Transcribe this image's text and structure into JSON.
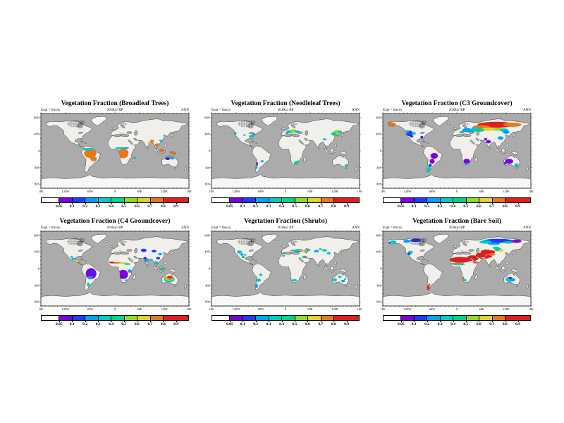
{
  "figure": {
    "kind": "six-panel global vegetation fraction maps",
    "background": "#ffffff"
  },
  "shared": {
    "expt_label": "Expt = lmxxy",
    "time_label": "20.0kyr BP",
    "season_label": "ANN"
  },
  "axes": {
    "x_ticks": [
      "180",
      "120W",
      "60W",
      "0",
      "60E",
      "120E",
      "180"
    ],
    "y_ticks": [
      "80N",
      "40N",
      "0",
      "40S",
      "80S"
    ]
  },
  "colorbar": {
    "tick_labels": [
      "0.05",
      "0.1",
      "0.2",
      "0.3",
      "0.4",
      "0.5",
      "0.6",
      "0.7",
      "0.8",
      "0.9"
    ],
    "segments": [
      {
        "color": "#ffffff",
        "flex": 1.4
      },
      {
        "color": "#7d00dc",
        "flex": 1
      },
      {
        "color": "#1e3cfa",
        "flex": 1
      },
      {
        "color": "#00a0ff",
        "flex": 1
      },
      {
        "color": "#00c8c8",
        "flex": 1
      },
      {
        "color": "#00d28c",
        "flex": 1
      },
      {
        "color": "#8cdc28",
        "flex": 1
      },
      {
        "color": "#e0d030",
        "flex": 1
      },
      {
        "color": "#e67819",
        "flex": 1
      },
      {
        "color": "#e11e1e",
        "flex": 2
      }
    ],
    "boundary_percents": [
      12.3,
      21.05,
      29.8,
      38.6,
      47.4,
      56.1,
      64.9,
      73.7,
      82.5,
      91.2
    ]
  },
  "map": {
    "ocean": "#acacac",
    "land": "#f0efeb",
    "ice": "#f7f7f5",
    "coast": "#000000",
    "palette": {
      "V": "#7d00dc",
      "B": "#1e3cfa",
      "A": "#00a0ff",
      "C": "#00c8c8",
      "T": "#00d28c",
      "G": "#8cdc28",
      "Y": "#e0d030",
      "O": "#e67819",
      "R": "#e11e1e"
    }
  },
  "panels": [
    {
      "title": "Vegetation Fraction (Broadleaf Trees)",
      "blobs": [
        [
          -60,
          -6,
          15,
          11,
          "O"
        ],
        [
          -52,
          -19,
          8,
          6,
          "O"
        ],
        [
          -63,
          4,
          12,
          3,
          "C"
        ],
        [
          -74,
          4,
          4,
          3,
          "T"
        ],
        [
          -88,
          13,
          5,
          3,
          "C"
        ],
        [
          -82,
          28,
          3,
          2,
          "C"
        ],
        [
          20,
          -6,
          13,
          12,
          "O"
        ],
        [
          12,
          7,
          12,
          2,
          "C"
        ],
        [
          27,
          7,
          7,
          2,
          "A"
        ],
        [
          47,
          -17,
          2,
          4,
          "C"
        ],
        [
          90,
          24,
          5,
          3,
          "O"
        ],
        [
          83,
          20,
          4,
          2,
          "Y"
        ],
        [
          103,
          14,
          6,
          4,
          "O"
        ],
        [
          111,
          2,
          10,
          7,
          "O"
        ],
        [
          140,
          -5,
          8,
          4,
          "O"
        ],
        [
          117,
          22,
          7,
          3,
          "A"
        ],
        [
          122,
          28,
          5,
          3,
          "B"
        ],
        [
          114,
          25,
          7,
          2,
          "C"
        ],
        [
          132,
          -15,
          11,
          4,
          "C"
        ],
        [
          128,
          -19,
          6,
          3,
          "V"
        ],
        [
          140,
          -18,
          4,
          3,
          "A"
        ],
        [
          134,
          -12,
          5,
          2,
          "O"
        ]
      ]
    },
    {
      "title": "Vegetation Fraction (Needleleaf Trees)",
      "blobs": [
        [
          -80,
          36,
          7,
          4,
          "C"
        ],
        [
          -85,
          34,
          4,
          3,
          "T"
        ],
        [
          -77,
          40,
          4,
          3,
          "A"
        ],
        [
          -122,
          42,
          3,
          4,
          "C"
        ],
        [
          -100,
          38,
          3,
          2,
          "C"
        ],
        [
          10,
          46,
          8,
          4,
          "T"
        ],
        [
          20,
          48,
          8,
          4,
          "G"
        ],
        [
          28,
          46,
          6,
          3,
          "C"
        ],
        [
          3,
          43,
          4,
          2,
          "A"
        ],
        [
          125,
          44,
          9,
          6,
          "G"
        ],
        [
          117,
          41,
          6,
          4,
          "T"
        ],
        [
          132,
          46,
          5,
          3,
          "C"
        ],
        [
          128,
          36,
          4,
          3,
          "A"
        ],
        [
          -71,
          -37,
          3,
          7,
          "A"
        ],
        [
          -69,
          -31,
          2,
          4,
          "V"
        ],
        [
          -57,
          -25,
          4,
          3,
          "C"
        ],
        [
          26,
          -29,
          6,
          4,
          "T"
        ],
        [
          30,
          -26,
          4,
          3,
          "C"
        ],
        [
          148,
          -35,
          4,
          3,
          "C"
        ],
        [
          146,
          -41,
          2,
          2,
          "T"
        ],
        [
          95,
          28,
          5,
          2,
          "A"
        ]
      ]
    },
    {
      "title": "Vegetation Fraction (C3 Groundcover)",
      "blobs": [
        [
          95,
          63,
          45,
          7,
          "R"
        ],
        [
          60,
          57,
          22,
          5,
          "O"
        ],
        [
          135,
          63,
          22,
          5,
          "O"
        ],
        [
          -160,
          64,
          12,
          5,
          "O"
        ],
        [
          -168,
          60,
          6,
          3,
          "R"
        ],
        [
          75,
          52,
          18,
          4,
          "Y"
        ],
        [
          55,
          50,
          12,
          4,
          "T"
        ],
        [
          45,
          53,
          10,
          4,
          "C"
        ],
        [
          100,
          52,
          12,
          4,
          "G"
        ],
        [
          115,
          50,
          10,
          4,
          "C"
        ],
        [
          120,
          45,
          8,
          4,
          "A"
        ],
        [
          25,
          50,
          12,
          5,
          "A"
        ],
        [
          38,
          48,
          8,
          4,
          "C"
        ],
        [
          12,
          45,
          6,
          3,
          "T"
        ],
        [
          -115,
          42,
          8,
          7,
          "B"
        ],
        [
          -105,
          42,
          5,
          4,
          "C"
        ],
        [
          -120,
          47,
          4,
          3,
          "T"
        ],
        [
          -110,
          35,
          4,
          3,
          "V"
        ],
        [
          -85,
          33,
          4,
          3,
          "B"
        ],
        [
          -55,
          -12,
          9,
          7,
          "V"
        ],
        [
          -60,
          -25,
          6,
          6,
          "V"
        ],
        [
          -68,
          -44,
          4,
          8,
          "C"
        ],
        [
          -70,
          -51,
          3,
          4,
          "T"
        ],
        [
          -65,
          -35,
          4,
          4,
          "B"
        ],
        [
          24,
          -25,
          8,
          6,
          "V"
        ],
        [
          20,
          -32,
          4,
          2,
          "C"
        ],
        [
          127,
          -25,
          10,
          6,
          "V"
        ],
        [
          145,
          -34,
          5,
          4,
          "C"
        ],
        [
          117,
          -30,
          4,
          3,
          "B"
        ],
        [
          77,
          22,
          6,
          4,
          "V"
        ],
        [
          70,
          28,
          4,
          3,
          "B"
        ],
        [
          106,
          31,
          7,
          4,
          "A"
        ]
      ]
    },
    {
      "title": "Vegetation Fraction (C4 Groundcover)",
      "blobs": [
        [
          -58,
          -12,
          13,
          13,
          "V"
        ],
        [
          -60,
          -22,
          6,
          4,
          "A"
        ],
        [
          -55,
          -8,
          5,
          3,
          "B"
        ],
        [
          -65,
          -38,
          3,
          5,
          "C"
        ],
        [
          20,
          -14,
          12,
          11,
          "V"
        ],
        [
          2,
          14,
          16,
          2,
          "O"
        ],
        [
          20,
          13,
          12,
          2,
          "Y"
        ],
        [
          30,
          11,
          8,
          2,
          "T"
        ],
        [
          -8,
          15,
          6,
          2,
          "R"
        ],
        [
          36,
          -6,
          5,
          4,
          "A"
        ],
        [
          77,
          20,
          6,
          5,
          "A"
        ],
        [
          80,
          14,
          4,
          3,
          "Y"
        ],
        [
          73,
          25,
          4,
          3,
          "V"
        ],
        [
          86,
          22,
          4,
          2,
          "C"
        ],
        [
          100,
          14,
          5,
          4,
          "C"
        ],
        [
          115,
          0,
          8,
          3,
          "T"
        ],
        [
          105,
          25,
          5,
          3,
          "B"
        ],
        [
          132,
          -25,
          13,
          8,
          "C"
        ],
        [
          132,
          -23,
          10,
          6,
          "Y"
        ],
        [
          133,
          -22,
          8,
          5,
          "O"
        ],
        [
          134,
          -20,
          5,
          3,
          "R"
        ],
        [
          -100,
          23,
          6,
          3,
          "C"
        ],
        [
          -95,
          19,
          4,
          2,
          "Y"
        ],
        [
          -89,
          15,
          3,
          2,
          "O"
        ],
        [
          -105,
          28,
          4,
          2,
          "A"
        ],
        [
          70,
          44,
          7,
          4,
          "B"
        ],
        [
          95,
          42,
          6,
          3,
          "B"
        ],
        [
          110,
          35,
          5,
          3,
          "A"
        ],
        [
          28,
          -28,
          5,
          2,
          "C"
        ]
      ]
    },
    {
      "title": "Vegetation Fraction (Shrubs)",
      "blobs": [
        [
          -112,
          40,
          6,
          4,
          "C"
        ],
        [
          -106,
          34,
          4,
          3,
          "A"
        ],
        [
          -103,
          28,
          4,
          3,
          "T"
        ],
        [
          -98,
          33,
          3,
          2,
          "C"
        ],
        [
          30,
          43,
          9,
          4,
          "C"
        ],
        [
          45,
          42,
          6,
          3,
          "Y"
        ],
        [
          18,
          44,
          4,
          2,
          "T"
        ],
        [
          55,
          45,
          6,
          3,
          "C"
        ],
        [
          75,
          42,
          6,
          3,
          "A"
        ],
        [
          95,
          44,
          6,
          3,
          "C"
        ],
        [
          105,
          37,
          5,
          3,
          "C"
        ],
        [
          85,
          47,
          4,
          2,
          "T"
        ],
        [
          45,
          28,
          5,
          3,
          "C"
        ],
        [
          -4,
          38,
          3,
          2,
          "T"
        ],
        [
          -5,
          31,
          4,
          2,
          "C"
        ],
        [
          -65,
          -28,
          5,
          4,
          "C"
        ],
        [
          -70,
          -42,
          3,
          5,
          "A"
        ],
        [
          -60,
          -15,
          4,
          3,
          "C"
        ],
        [
          22,
          -28,
          6,
          3,
          "C"
        ],
        [
          120,
          -27,
          5,
          4,
          "C"
        ],
        [
          140,
          -30,
          5,
          3,
          "A"
        ],
        [
          132,
          -20,
          4,
          3,
          "T"
        ],
        [
          145,
          -25,
          3,
          2,
          "C"
        ]
      ]
    },
    {
      "title": "Vegetation Fraction (Bare Soil)",
      "blobs": [
        [
          8,
          21,
          26,
          7,
          "R"
        ],
        [
          38,
          25,
          14,
          7,
          "R"
        ],
        [
          58,
          32,
          12,
          6,
          "R"
        ],
        [
          72,
          40,
          14,
          6,
          "R"
        ],
        [
          85,
          40,
          8,
          4,
          "R"
        ],
        [
          78,
          30,
          8,
          4,
          "R"
        ],
        [
          0,
          12,
          18,
          2,
          "O"
        ],
        [
          5,
          10,
          15,
          2,
          "C"
        ],
        [
          45,
          15,
          6,
          3,
          "O"
        ],
        [
          100,
          67,
          35,
          5,
          "B"
        ],
        [
          70,
          64,
          15,
          4,
          "C"
        ],
        [
          125,
          63,
          12,
          3,
          "T"
        ],
        [
          145,
          66,
          12,
          4,
          "V"
        ],
        [
          90,
          60,
          15,
          3,
          "A"
        ],
        [
          -100,
          68,
          13,
          4,
          "B"
        ],
        [
          -122,
          66,
          8,
          4,
          "A"
        ],
        [
          -155,
          64,
          8,
          4,
          "C"
        ],
        [
          -165,
          61,
          5,
          3,
          "B"
        ],
        [
          85,
          34,
          9,
          3,
          "O"
        ],
        [
          72,
          27,
          5,
          3,
          "R"
        ],
        [
          -69,
          -45,
          3,
          7,
          "R"
        ],
        [
          -67,
          -39,
          3,
          3,
          "O"
        ],
        [
          127,
          -26,
          9,
          6,
          "C"
        ],
        [
          136,
          -27,
          6,
          4,
          "A"
        ],
        [
          130,
          -23,
          4,
          3,
          "B"
        ],
        [
          19,
          -28,
          5,
          3,
          "C"
        ],
        [
          15,
          -23,
          3,
          4,
          "O"
        ],
        [
          -113,
          39,
          6,
          4,
          "C"
        ],
        [
          -117,
          35,
          4,
          3,
          "B"
        ],
        [
          100,
          46,
          9,
          4,
          "T"
        ],
        [
          95,
          50,
          8,
          3,
          "C"
        ],
        [
          108,
          44,
          6,
          3,
          "Y"
        ]
      ]
    }
  ],
  "chart_data": {
    "type": "heatmap",
    "subtype": "geographic vegetation-fraction maps, equirectangular world projection",
    "panels": [
      "Vegetation Fraction (Broadleaf Trees)",
      "Vegetation Fraction (Needleleaf Trees)",
      "Vegetation Fraction (C3 Groundcover)",
      "Vegetation Fraction (C4 Groundcover)",
      "Vegetation Fraction (Shrubs)",
      "Vegetation Fraction (Bare Soil)"
    ],
    "time": "20.0kyr BP",
    "season": "ANN",
    "value_levels": [
      0.05,
      0.1,
      0.2,
      0.3,
      0.4,
      0.5,
      0.6,
      0.7,
      0.8,
      0.9
    ],
    "level_colors": [
      "#ffffff",
      "#7d00dc",
      "#1e3cfa",
      "#00a0ff",
      "#00c8c8",
      "#00d28c",
      "#8cdc28",
      "#e0d030",
      "#e67819",
      "#e11e1e"
    ],
    "x_range_deg": [
      -180,
      180
    ],
    "y_range_deg": [
      -90,
      90
    ],
    "x_tick_labels": [
      "180",
      "120W",
      "60W",
      "0",
      "60E",
      "120E",
      "180"
    ],
    "y_tick_labels": [
      "80N",
      "40N",
      "0",
      "40S",
      "80S"
    ],
    "notable_patterns": [
      "Broadleaf Trees: high (0.8+) over Amazonia, central/southern Africa, maritime SE Asia; cyan/blue fringes north Australia and coastal margins",
      "Needleleaf Trees: moderate (0.3-0.6) patches eastern North America, central Europe, northeast Asia, southern Chile, South Africa",
      "C3 Groundcover: high (0.7-0.9+) band across Alaska and northern Siberia; low purple values over South America, southern Africa, Australia; blue over western North America",
      "C4 Groundcover: low (0.05-0.1) purple over tropical South America and Africa with high Sahel stripe; concentric high values (red core) over central Australia",
      "Shrubs: scattered low-moderate cyan/blue patches in western North America, central Asia, Anatolia, southern South America, Australia",
      "Bare Soil: very high (0.9+) red over Sahara, Arabia, central Asia; blue/cyan over high-latitude Siberia and Canada; red spot Patagonia; cyan central Australia"
    ],
    "legend_position": "below each panel",
    "grid": false
  }
}
